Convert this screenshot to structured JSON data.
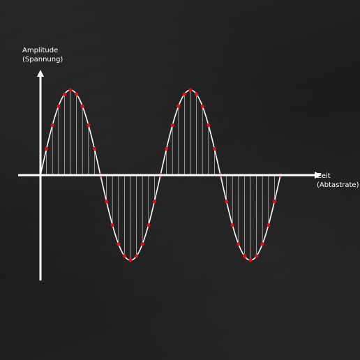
{
  "y_axis": {
    "label_line1": "Amplitude",
    "label_line2": "(Spannung)"
  },
  "x_axis": {
    "label_line1": "Zeit",
    "label_line2": "(Abtastrate)"
  },
  "signal": {
    "cycles": 2,
    "samples_per_cycle": 20,
    "start_phase": "negative",
    "curve_color": "#ffffff",
    "sample_line_color": "#e8e8e8",
    "sample_point_color": "#e01010"
  }
}
